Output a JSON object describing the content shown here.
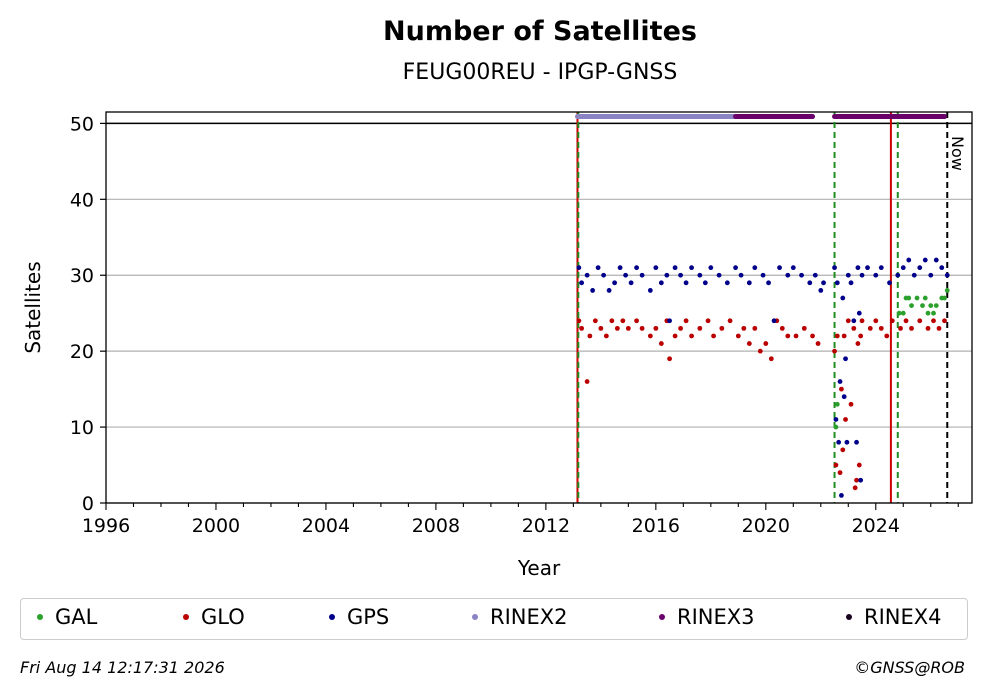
{
  "chart_data": {
    "type": "scatter",
    "title": "Number of Satellites",
    "subtitle": "FEUG00REU - IPGP-GNSS",
    "xlabel": "Year",
    "ylabel": "Satellites",
    "xlim": [
      1996,
      2027.5
    ],
    "ylim": [
      0,
      51.5
    ],
    "xticks": [
      "1996",
      "2000",
      "2004",
      "2008",
      "2012",
      "2016",
      "2020",
      "2024"
    ],
    "yticks": [
      "0",
      "10",
      "20",
      "30",
      "40",
      "50"
    ],
    "grid": "y",
    "legend_position": "bottom",
    "now_label": "Now",
    "vlines": [
      {
        "x": 2013.15,
        "color": "#cc0000",
        "style": "solid"
      },
      {
        "x": 2013.18,
        "color": "#228b22",
        "style": "dashed"
      },
      {
        "x": 2022.5,
        "color": "#228b22",
        "style": "dashed"
      },
      {
        "x": 2024.55,
        "color": "#cc0000",
        "style": "solid"
      },
      {
        "x": 2024.8,
        "color": "#228b22",
        "style": "dashed"
      },
      {
        "x": 2026.6,
        "color": "#000000",
        "style": "dashed"
      }
    ],
    "hlines": [
      {
        "y": 50,
        "color": "#000000"
      }
    ],
    "series": [
      {
        "name": "GAL",
        "color": "#2ca02c",
        "points": [
          [
            2022.55,
            10
          ],
          [
            2022.6,
            13
          ],
          [
            2024.85,
            25
          ],
          [
            2025.0,
            25
          ],
          [
            2025.1,
            27
          ],
          [
            2025.2,
            27
          ],
          [
            2025.3,
            26
          ],
          [
            2025.5,
            27
          ],
          [
            2025.7,
            26
          ],
          [
            2025.8,
            27
          ],
          [
            2025.9,
            25
          ],
          [
            2026.0,
            26
          ],
          [
            2026.1,
            25
          ],
          [
            2026.2,
            26
          ],
          [
            2026.4,
            27
          ],
          [
            2026.5,
            27
          ],
          [
            2026.6,
            28
          ]
        ]
      },
      {
        "name": "GLO",
        "color": "#bb0000",
        "points": [
          [
            2013.2,
            24
          ],
          [
            2013.3,
            23
          ],
          [
            2013.5,
            16
          ],
          [
            2013.6,
            22
          ],
          [
            2013.8,
            24
          ],
          [
            2014.0,
            23
          ],
          [
            2014.2,
            22
          ],
          [
            2014.4,
            24
          ],
          [
            2014.6,
            23
          ],
          [
            2014.8,
            24
          ],
          [
            2015.0,
            23
          ],
          [
            2015.3,
            24
          ],
          [
            2015.5,
            23
          ],
          [
            2015.8,
            22
          ],
          [
            2016.0,
            23
          ],
          [
            2016.2,
            21
          ],
          [
            2016.4,
            24
          ],
          [
            2016.5,
            19
          ],
          [
            2016.7,
            22
          ],
          [
            2016.9,
            23
          ],
          [
            2017.1,
            24
          ],
          [
            2017.3,
            22
          ],
          [
            2017.6,
            23
          ],
          [
            2017.9,
            24
          ],
          [
            2018.1,
            22
          ],
          [
            2018.4,
            23
          ],
          [
            2018.7,
            24
          ],
          [
            2019.0,
            22
          ],
          [
            2019.2,
            23
          ],
          [
            2019.4,
            21
          ],
          [
            2019.6,
            23
          ],
          [
            2019.8,
            20
          ],
          [
            2020.0,
            21
          ],
          [
            2020.2,
            19
          ],
          [
            2020.4,
            24
          ],
          [
            2020.6,
            23
          ],
          [
            2020.8,
            22
          ],
          [
            2021.1,
            22
          ],
          [
            2021.4,
            23
          ],
          [
            2021.7,
            22
          ],
          [
            2021.9,
            21
          ],
          [
            2022.5,
            20
          ],
          [
            2022.55,
            5
          ],
          [
            2022.6,
            22
          ],
          [
            2022.7,
            4
          ],
          [
            2022.75,
            15
          ],
          [
            2022.8,
            7
          ],
          [
            2022.85,
            22
          ],
          [
            2022.9,
            11
          ],
          [
            2023.0,
            24
          ],
          [
            2023.1,
            13
          ],
          [
            2023.2,
            23
          ],
          [
            2023.25,
            2
          ],
          [
            2023.3,
            3
          ],
          [
            2023.35,
            21
          ],
          [
            2023.4,
            5
          ],
          [
            2023.45,
            22
          ],
          [
            2023.5,
            24
          ],
          [
            2023.8,
            23
          ],
          [
            2024.0,
            24
          ],
          [
            2024.2,
            23
          ],
          [
            2024.4,
            22
          ],
          [
            2024.6,
            24
          ],
          [
            2024.9,
            23
          ],
          [
            2025.1,
            24
          ],
          [
            2025.3,
            23
          ],
          [
            2025.6,
            24
          ],
          [
            2025.9,
            23
          ],
          [
            2026.1,
            24
          ],
          [
            2026.3,
            23
          ],
          [
            2026.5,
            24
          ]
        ]
      },
      {
        "name": "GPS",
        "color": "#00008b",
        "points": [
          [
            2013.2,
            31
          ],
          [
            2013.3,
            29
          ],
          [
            2013.5,
            30
          ],
          [
            2013.7,
            28
          ],
          [
            2013.9,
            31
          ],
          [
            2014.1,
            30
          ],
          [
            2014.3,
            28
          ],
          [
            2014.5,
            29
          ],
          [
            2014.7,
            31
          ],
          [
            2014.9,
            30
          ],
          [
            2015.1,
            29
          ],
          [
            2015.3,
            31
          ],
          [
            2015.5,
            30
          ],
          [
            2015.8,
            28
          ],
          [
            2016.0,
            31
          ],
          [
            2016.2,
            29
          ],
          [
            2016.4,
            30
          ],
          [
            2016.5,
            24
          ],
          [
            2016.7,
            31
          ],
          [
            2016.9,
            30
          ],
          [
            2017.1,
            29
          ],
          [
            2017.3,
            31
          ],
          [
            2017.6,
            30
          ],
          [
            2017.8,
            29
          ],
          [
            2018.0,
            31
          ],
          [
            2018.3,
            30
          ],
          [
            2018.6,
            29
          ],
          [
            2018.9,
            31
          ],
          [
            2019.1,
            30
          ],
          [
            2019.4,
            29
          ],
          [
            2019.6,
            31
          ],
          [
            2019.9,
            30
          ],
          [
            2020.1,
            29
          ],
          [
            2020.3,
            24
          ],
          [
            2020.5,
            31
          ],
          [
            2020.8,
            30
          ],
          [
            2021.0,
            31
          ],
          [
            2021.3,
            30
          ],
          [
            2021.6,
            29
          ],
          [
            2021.8,
            30
          ],
          [
            2022.0,
            28
          ],
          [
            2022.1,
            29
          ],
          [
            2022.5,
            31
          ],
          [
            2022.55,
            11
          ],
          [
            2022.6,
            29
          ],
          [
            2022.65,
            8
          ],
          [
            2022.7,
            16
          ],
          [
            2022.75,
            1
          ],
          [
            2022.8,
            27
          ],
          [
            2022.85,
            14
          ],
          [
            2022.9,
            19
          ],
          [
            2022.95,
            8
          ],
          [
            2023.0,
            30
          ],
          [
            2023.1,
            29
          ],
          [
            2023.2,
            24
          ],
          [
            2023.3,
            8
          ],
          [
            2023.35,
            31
          ],
          [
            2023.4,
            25
          ],
          [
            2023.45,
            3
          ],
          [
            2023.5,
            30
          ],
          [
            2023.7,
            31
          ],
          [
            2024.0,
            30
          ],
          [
            2024.2,
            31
          ],
          [
            2024.5,
            29
          ],
          [
            2024.8,
            30
          ],
          [
            2025.0,
            31
          ],
          [
            2025.2,
            32
          ],
          [
            2025.4,
            30
          ],
          [
            2025.6,
            31
          ],
          [
            2025.8,
            32
          ],
          [
            2026.0,
            30
          ],
          [
            2026.2,
            32
          ],
          [
            2026.4,
            31
          ],
          [
            2026.6,
            30
          ]
        ]
      },
      {
        "name": "RINEX2",
        "color": "#8a84c4",
        "segments": [
          [
            2013.15,
            2018.9
          ]
        ]
      },
      {
        "name": "RINEX3",
        "color": "#6a006a",
        "segments": [
          [
            2018.9,
            2021.7
          ],
          [
            2022.5,
            2026.5
          ]
        ]
      },
      {
        "name": "RINEX4",
        "color": "#1a0020",
        "segments": []
      }
    ]
  },
  "legend": [
    "GAL",
    "GLO",
    "GPS",
    "RINEX2",
    "RINEX3",
    "RINEX4"
  ],
  "footer": {
    "timestamp": "Fri Aug 14 12:17:31 2026",
    "credit": "©GNSS@ROB"
  }
}
